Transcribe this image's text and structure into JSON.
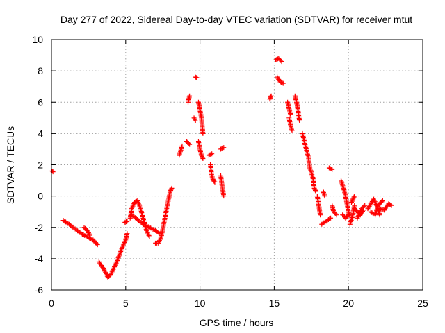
{
  "chart_data": {
    "type": "scatter",
    "title": "Day 277 of 2022, Sidereal Day-to-day VTEC variation (SDTVAR) for receiver mtut",
    "xlabel": "GPS time / hours",
    "ylabel": "SDTVAR / TECUs",
    "xlim": [
      0,
      25
    ],
    "ylim": [
      -6,
      10
    ],
    "xticks": [
      0,
      5,
      10,
      15,
      20,
      25
    ],
    "yticks": [
      -6,
      -4,
      -2,
      0,
      2,
      4,
      6,
      8,
      10
    ],
    "grid": true,
    "marker": "+",
    "color": "#ff0000",
    "segments": [
      [
        [
          0.05,
          1.6
        ],
        [
          0.1,
          1.55
        ]
      ],
      [
        [
          0.8,
          -1.55
        ],
        [
          1.2,
          -1.8
        ],
        [
          1.6,
          -2.1
        ],
        [
          2.0,
          -2.4
        ],
        [
          2.4,
          -2.6
        ],
        [
          2.8,
          -2.8
        ],
        [
          3.1,
          -3.1
        ]
      ],
      [
        [
          2.2,
          -2.0
        ],
        [
          2.4,
          -2.2
        ],
        [
          2.6,
          -2.5
        ]
      ],
      [
        [
          3.2,
          -4.2
        ],
        [
          3.4,
          -4.5
        ],
        [
          3.6,
          -4.8
        ],
        [
          3.8,
          -5.2
        ],
        [
          4.0,
          -5.0
        ],
        [
          4.2,
          -4.6
        ],
        [
          4.4,
          -4.2
        ],
        [
          4.6,
          -3.7
        ],
        [
          4.8,
          -3.2
        ],
        [
          5.0,
          -2.8
        ],
        [
          5.1,
          -2.4
        ]
      ],
      [
        [
          4.9,
          -1.7
        ],
        [
          5.1,
          -1.6
        ]
      ],
      [
        [
          5.3,
          -1.4
        ],
        [
          5.4,
          -0.8
        ],
        [
          5.6,
          -0.4
        ],
        [
          5.8,
          -0.3
        ],
        [
          6.0,
          -0.8
        ],
        [
          6.2,
          -1.5
        ],
        [
          6.4,
          -2.2
        ],
        [
          6.6,
          -2.6
        ]
      ],
      [
        [
          5.4,
          -1.2
        ],
        [
          5.8,
          -1.5
        ],
        [
          6.2,
          -1.8
        ],
        [
          6.6,
          -2.0
        ],
        [
          7.0,
          -2.2
        ],
        [
          7.3,
          -2.4
        ]
      ],
      [
        [
          7.0,
          -3.0
        ],
        [
          7.2,
          -3.0
        ],
        [
          7.4,
          -2.6
        ],
        [
          7.6,
          -1.6
        ],
        [
          7.8,
          -0.6
        ],
        [
          8.0,
          0.3
        ],
        [
          8.1,
          0.5
        ]
      ],
      [
        [
          8.6,
          2.6
        ],
        [
          8.8,
          3.2
        ]
      ],
      [
        [
          9.1,
          3.5
        ],
        [
          9.3,
          3.3
        ]
      ],
      [
        [
          9.2,
          6.0
        ],
        [
          9.3,
          6.4
        ]
      ],
      [
        [
          9.7,
          7.6
        ],
        [
          9.8,
          7.55
        ]
      ],
      [
        [
          9.6,
          5.0
        ],
        [
          9.7,
          4.8
        ]
      ],
      [
        [
          9.9,
          6.0
        ],
        [
          10.0,
          5.5
        ],
        [
          10.1,
          5.0
        ],
        [
          10.2,
          4.0
        ]
      ],
      [
        [
          9.9,
          3.5
        ],
        [
          10.0,
          3.0
        ],
        [
          10.1,
          2.6
        ],
        [
          10.2,
          2.4
        ]
      ],
      [
        [
          10.6,
          2.6
        ],
        [
          10.8,
          2.7
        ]
      ],
      [
        [
          10.7,
          2.0
        ],
        [
          10.8,
          1.3
        ],
        [
          10.9,
          1.0
        ],
        [
          11.0,
          0.9
        ]
      ],
      [
        [
          11.4,
          1.3
        ],
        [
          11.5,
          0.6
        ],
        [
          11.6,
          0.0
        ]
      ],
      [
        [
          11.4,
          3.0
        ],
        [
          11.6,
          3.1
        ]
      ],
      [
        [
          14.7,
          6.2
        ],
        [
          14.8,
          6.4
        ]
      ],
      [
        [
          15.1,
          8.7
        ],
        [
          15.3,
          8.8
        ],
        [
          15.5,
          8.6
        ]
      ],
      [
        [
          15.2,
          7.6
        ],
        [
          15.4,
          7.3
        ],
        [
          15.6,
          7.2
        ]
      ],
      [
        [
          15.9,
          6.0
        ],
        [
          16.0,
          5.6
        ],
        [
          16.1,
          5.2
        ]
      ],
      [
        [
          16.0,
          5.0
        ],
        [
          16.1,
          4.5
        ],
        [
          16.2,
          4.2
        ]
      ],
      [
        [
          16.4,
          6.4
        ],
        [
          16.5,
          6.0
        ],
        [
          16.6,
          5.5
        ],
        [
          16.7,
          4.8
        ]
      ],
      [
        [
          16.9,
          4.0
        ],
        [
          17.1,
          3.2
        ],
        [
          17.3,
          2.5
        ],
        [
          17.4,
          1.8
        ],
        [
          17.6,
          1.2
        ],
        [
          17.7,
          0.5
        ],
        [
          17.8,
          0.3
        ]
      ],
      [
        [
          17.9,
          0.0
        ],
        [
          18.0,
          -0.6
        ],
        [
          18.1,
          -1.2
        ]
      ],
      [
        [
          18.2,
          -1.8
        ],
        [
          18.5,
          -1.6
        ],
        [
          18.8,
          -1.4
        ]
      ],
      [
        [
          18.3,
          0.3
        ],
        [
          18.4,
          0.0
        ]
      ],
      [
        [
          18.7,
          1.8
        ],
        [
          18.9,
          1.7
        ]
      ],
      [
        [
          18.9,
          -0.6
        ],
        [
          19.0,
          -1.0
        ],
        [
          19.2,
          -1.2
        ]
      ],
      [
        [
          19.5,
          1.0
        ],
        [
          19.7,
          0.4
        ],
        [
          19.8,
          0.0
        ],
        [
          19.9,
          -0.5
        ],
        [
          20.0,
          -1.0
        ],
        [
          20.1,
          -1.3
        ]
      ],
      [
        [
          19.6,
          -1.2
        ],
        [
          19.8,
          -1.4
        ],
        [
          20.0,
          -1.2
        ]
      ],
      [
        [
          20.1,
          -1.8
        ],
        [
          20.3,
          -1.2
        ],
        [
          20.4,
          -0.6
        ]
      ],
      [
        [
          20.2,
          -0.4
        ],
        [
          20.3,
          -0.2
        ],
        [
          20.4,
          0.0
        ]
      ],
      [
        [
          20.4,
          -0.8
        ],
        [
          20.6,
          -1.0
        ],
        [
          20.8,
          -1.2
        ],
        [
          21.0,
          -0.9
        ]
      ],
      [
        [
          20.6,
          -1.4
        ],
        [
          20.9,
          -0.8
        ],
        [
          21.1,
          -0.6
        ]
      ],
      [
        [
          21.3,
          -0.8
        ],
        [
          21.5,
          -0.5
        ],
        [
          21.7,
          -0.2
        ],
        [
          21.9,
          -0.6
        ],
        [
          22.1,
          -1.2
        ]
      ],
      [
        [
          21.5,
          -1.0
        ],
        [
          21.8,
          -1.2
        ],
        [
          22.0,
          -0.6
        ],
        [
          22.3,
          -0.3
        ]
      ],
      [
        [
          22.1,
          -0.8
        ],
        [
          22.4,
          -0.9
        ],
        [
          22.7,
          -0.5
        ],
        [
          22.9,
          -0.6
        ]
      ]
    ]
  }
}
